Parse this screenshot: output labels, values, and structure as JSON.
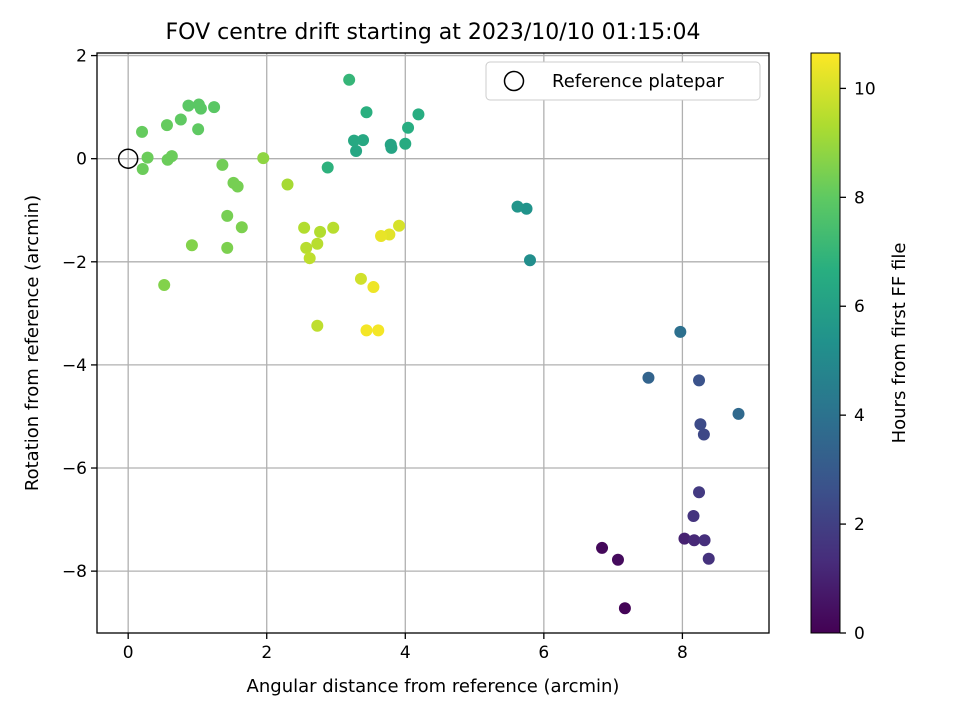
{
  "chart_data": {
    "type": "scatter",
    "title": "FOV centre drift starting at 2023/10/10 01:15:04",
    "xlabel": "Angular distance from reference (arcmin)",
    "ylabel": "Rotation from reference (arcmin)",
    "xlim": [
      -0.45,
      9.25
    ],
    "ylim": [
      -9.2,
      2.05
    ],
    "xticks": [
      0,
      2,
      4,
      6,
      8
    ],
    "yticks": [
      2,
      0,
      -2,
      -4,
      -6,
      -8
    ],
    "xtick_labels": [
      "0",
      "2",
      "4",
      "6",
      "8"
    ],
    "ytick_labels": [
      "2",
      "0",
      "−2",
      "−4",
      "−6",
      "−8"
    ],
    "grid": true,
    "colormap": "viridis",
    "legend": {
      "position": "top-right",
      "entries": [
        {
          "label": "Reference platepar",
          "marker": "open-circle",
          "x": 0,
          "y": 0
        }
      ]
    },
    "colorbar": {
      "label": "Hours from first FF file",
      "range": [
        0,
        10.65
      ],
      "ticks": [
        0,
        2,
        4,
        6,
        8,
        10
      ],
      "tick_labels": [
        "0",
        "2",
        "4",
        "6",
        "8",
        "10"
      ]
    },
    "points": [
      {
        "x": 7.17,
        "y": -8.72,
        "h": 0.1
      },
      {
        "x": 6.84,
        "y": -7.55,
        "h": 0.2
      },
      {
        "x": 7.07,
        "y": -7.78,
        "h": 0.3
      },
      {
        "x": 8.03,
        "y": -7.37,
        "h": 1.0
      },
      {
        "x": 8.17,
        "y": -7.4,
        "h": 1.2
      },
      {
        "x": 8.32,
        "y": -7.4,
        "h": 1.4
      },
      {
        "x": 8.38,
        "y": -7.76,
        "h": 1.5
      },
      {
        "x": 8.16,
        "y": -6.93,
        "h": 1.6
      },
      {
        "x": 8.24,
        "y": -6.47,
        "h": 1.8
      },
      {
        "x": 8.31,
        "y": -5.35,
        "h": 2.3
      },
      {
        "x": 8.26,
        "y": -5.15,
        "h": 2.4
      },
      {
        "x": 8.24,
        "y": -4.3,
        "h": 2.7
      },
      {
        "x": 7.51,
        "y": -4.25,
        "h": 3.4
      },
      {
        "x": 8.81,
        "y": -4.95,
        "h": 3.6
      },
      {
        "x": 7.97,
        "y": -3.36,
        "h": 3.9
      },
      {
        "x": 5.8,
        "y": -1.97,
        "h": 5.2
      },
      {
        "x": 5.75,
        "y": -0.97,
        "h": 5.4
      },
      {
        "x": 5.62,
        "y": -0.93,
        "h": 5.5
      },
      {
        "x": 3.79,
        "y": 0.27,
        "h": 6.2
      },
      {
        "x": 3.8,
        "y": 0.21,
        "h": 6.2
      },
      {
        "x": 3.29,
        "y": 0.15,
        "h": 6.3
      },
      {
        "x": 3.39,
        "y": 0.36,
        "h": 6.4
      },
      {
        "x": 3.26,
        "y": 0.35,
        "h": 6.4
      },
      {
        "x": 4.0,
        "y": 0.29,
        "h": 6.5
      },
      {
        "x": 4.04,
        "y": 0.6,
        "h": 6.6
      },
      {
        "x": 4.19,
        "y": 0.86,
        "h": 6.6
      },
      {
        "x": 3.44,
        "y": 0.9,
        "h": 6.7
      },
      {
        "x": 2.88,
        "y": -0.17,
        "h": 6.8
      },
      {
        "x": 3.19,
        "y": 1.53,
        "h": 7.0
      },
      {
        "x": 0.87,
        "y": 1.03,
        "h": 7.9
      },
      {
        "x": 1.02,
        "y": 1.05,
        "h": 7.9
      },
      {
        "x": 1.05,
        "y": 0.97,
        "h": 7.9
      },
      {
        "x": 1.24,
        "y": 1.0,
        "h": 7.9
      },
      {
        "x": 0.76,
        "y": 0.76,
        "h": 8.0
      },
      {
        "x": 1.01,
        "y": 0.57,
        "h": 8.0
      },
      {
        "x": 0.2,
        "y": 0.52,
        "h": 8.1
      },
      {
        "x": 0.56,
        "y": 0.65,
        "h": 8.1
      },
      {
        "x": 0.28,
        "y": 0.02,
        "h": 8.2
      },
      {
        "x": 0.21,
        "y": -0.2,
        "h": 8.2
      },
      {
        "x": 0.57,
        "y": -0.02,
        "h": 8.2
      },
      {
        "x": 0.63,
        "y": 0.05,
        "h": 8.2
      },
      {
        "x": 1.36,
        "y": -0.12,
        "h": 8.3
      },
      {
        "x": 1.52,
        "y": -0.47,
        "h": 8.4
      },
      {
        "x": 1.58,
        "y": -0.54,
        "h": 8.4
      },
      {
        "x": 1.43,
        "y": -1.11,
        "h": 8.4
      },
      {
        "x": 1.64,
        "y": -1.33,
        "h": 8.5
      },
      {
        "x": 1.43,
        "y": -1.73,
        "h": 8.5
      },
      {
        "x": 0.92,
        "y": -1.68,
        "h": 8.6
      },
      {
        "x": 0.52,
        "y": -2.45,
        "h": 8.6
      },
      {
        "x": 1.95,
        "y": 0.01,
        "h": 8.8
      },
      {
        "x": 2.3,
        "y": -0.5,
        "h": 9.2
      },
      {
        "x": 2.54,
        "y": -1.34,
        "h": 9.4
      },
      {
        "x": 2.77,
        "y": -1.42,
        "h": 9.4
      },
      {
        "x": 2.96,
        "y": -1.34,
        "h": 9.5
      },
      {
        "x": 2.73,
        "y": -1.65,
        "h": 9.5
      },
      {
        "x": 2.57,
        "y": -1.73,
        "h": 9.5
      },
      {
        "x": 2.62,
        "y": -1.93,
        "h": 9.6
      },
      {
        "x": 2.73,
        "y": -3.24,
        "h": 9.6
      },
      {
        "x": 3.36,
        "y": -2.33,
        "h": 9.9
      },
      {
        "x": 3.91,
        "y": -1.3,
        "h": 10.0
      },
      {
        "x": 3.77,
        "y": -1.47,
        "h": 10.2
      },
      {
        "x": 3.65,
        "y": -1.5,
        "h": 10.3
      },
      {
        "x": 3.54,
        "y": -2.49,
        "h": 10.4
      },
      {
        "x": 3.44,
        "y": -3.33,
        "h": 10.5
      },
      {
        "x": 3.61,
        "y": -3.33,
        "h": 10.5
      }
    ]
  }
}
